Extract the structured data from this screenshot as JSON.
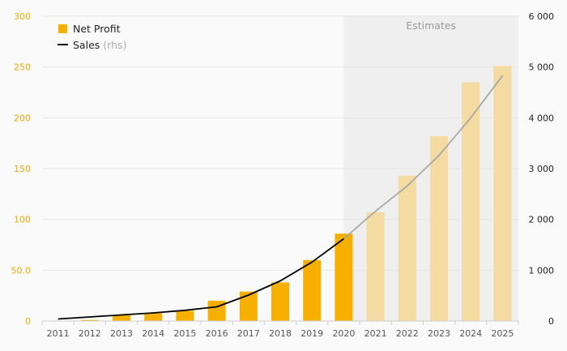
{
  "chart_data": {
    "type": "bar",
    "categories": [
      "2011",
      "2012",
      "2013",
      "2014",
      "2015",
      "2016",
      "2017",
      "2018",
      "2019",
      "2020",
      "2021",
      "2022",
      "2023",
      "2024",
      "2025"
    ],
    "series": [
      {
        "name": "Net Profit",
        "kind": "bar",
        "axis": "left",
        "color": "#f7b000",
        "estimate_color": "#f3dba1",
        "values": [
          0.3,
          1.0,
          6.0,
          8.0,
          10.0,
          20.0,
          29.0,
          38.0,
          60.0,
          86.0,
          107.0,
          143.0,
          182.0,
          235.0,
          251.0
        ]
      },
      {
        "name": "Sales",
        "name_suffix": "(rhs)",
        "kind": "line",
        "axis": "right",
        "color": "#000000",
        "estimate_color": "#a8a8a8",
        "values": [
          40,
          80,
          120,
          160,
          210,
          280,
          510,
          790,
          1160,
          1620,
          2160,
          2660,
          3260,
          4000,
          4830
        ]
      }
    ],
    "estimates_start_index": 9,
    "estimates_label": "Estimates",
    "ylim_left": [
      0,
      300
    ],
    "ylim_right": [
      0,
      6000
    ],
    "left_ticks": [
      {
        "value": 0,
        "label": "0"
      },
      {
        "value": 50,
        "label": "50.0"
      },
      {
        "value": 100,
        "label": "100"
      },
      {
        "value": 150,
        "label": "150"
      },
      {
        "value": 200,
        "label": "200"
      },
      {
        "value": 250,
        "label": "250"
      },
      {
        "value": 300,
        "label": "300"
      }
    ],
    "right_ticks": [
      {
        "value": 0,
        "label": "0"
      },
      {
        "value": 1000,
        "label": "1 000"
      },
      {
        "value": 2000,
        "label": "2 000"
      },
      {
        "value": 3000,
        "label": "3 000"
      },
      {
        "value": 4000,
        "label": "4 000"
      },
      {
        "value": 5000,
        "label": "5 000"
      },
      {
        "value": 6000,
        "label": "6 000"
      }
    ],
    "grid": true,
    "legend_position": "top-left",
    "colors": {
      "background": "#fafafa",
      "shade": "#efefef",
      "grid": "#e6e6e6",
      "left_axis_text": "#f0a800",
      "right_axis_text": "#222222"
    }
  }
}
